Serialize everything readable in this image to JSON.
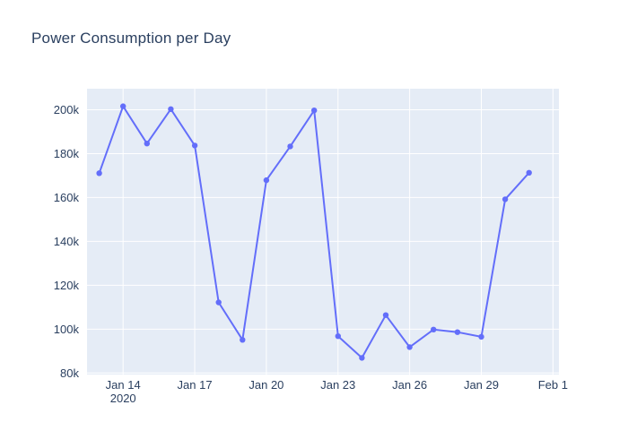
{
  "title": "Power Consumption per Day",
  "colors": {
    "line": "#636efa",
    "marker": "#636efa",
    "plot_background": "#e5ecf6",
    "gridline": "#ffffff",
    "text": "#2a3f5f",
    "page_background": "#ffffff"
  },
  "chart_data": {
    "type": "line",
    "title": "Power Consumption per Day",
    "xlabel": "",
    "ylabel": "",
    "legend": false,
    "grid": true,
    "markers": true,
    "x": [
      "2020-01-13",
      "2020-01-14",
      "2020-01-15",
      "2020-01-16",
      "2020-01-17",
      "2020-01-18",
      "2020-01-19",
      "2020-01-20",
      "2020-01-21",
      "2020-01-22",
      "2020-01-23",
      "2020-01-24",
      "2020-01-25",
      "2020-01-26",
      "2020-01-27",
      "2020-01-28",
      "2020-01-29",
      "2020-01-30",
      "2020-01-31"
    ],
    "y": [
      171100,
      201600,
      184600,
      200300,
      183700,
      112200,
      95100,
      167900,
      183300,
      199700,
      96800,
      86900,
      106400,
      91800,
      99800,
      98600,
      96500,
      159200,
      171300
    ],
    "x_ticks": [
      {
        "day": 14,
        "label": "Jan 14",
        "sublabel": "2020"
      },
      {
        "day": 17,
        "label": "Jan 17"
      },
      {
        "day": 20,
        "label": "Jan 20"
      },
      {
        "day": 23,
        "label": "Jan 23"
      },
      {
        "day": 26,
        "label": "Jan 26"
      },
      {
        "day": 29,
        "label": "Jan 29"
      },
      {
        "day": 32,
        "label": "Feb 1"
      }
    ],
    "y_ticks": [
      {
        "value": 80000,
        "label": "80k"
      },
      {
        "value": 100000,
        "label": "100k"
      },
      {
        "value": 120000,
        "label": "120k"
      },
      {
        "value": 140000,
        "label": "140k"
      },
      {
        "value": 160000,
        "label": "160k"
      },
      {
        "value": 180000,
        "label": "180k"
      },
      {
        "value": 200000,
        "label": "200k"
      }
    ],
    "x_range_days": [
      12.49,
      32.25
    ],
    "y_range": [
      79300,
      209600
    ]
  }
}
